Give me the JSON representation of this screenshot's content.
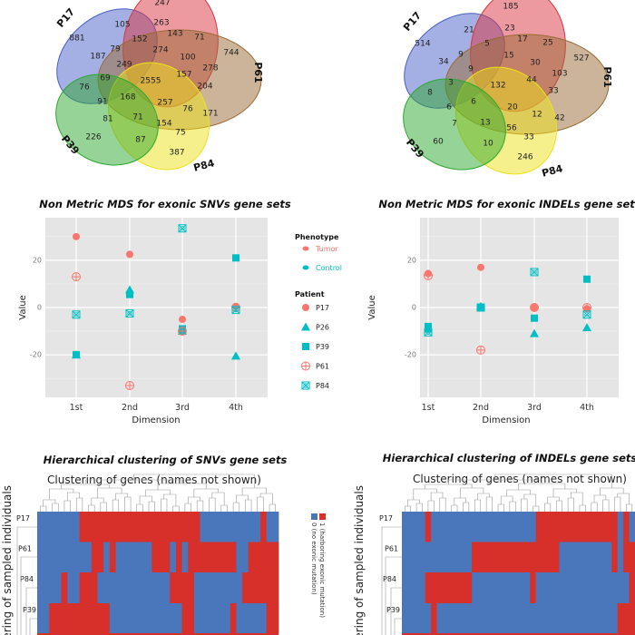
{
  "colors": {
    "P17": "#4a5fc8",
    "top": "#d9343f",
    "P61": "#9a6a35",
    "P84": "#eee21a",
    "P39": "#2ea82e",
    "tumor": "#f8766d",
    "control": "#00bfc4",
    "heat_one": "#d7302a",
    "heat_zero": "#4a76bb",
    "panel_bg": "#e5e5e5"
  },
  "chart_data": [
    {
      "type": "venn",
      "panel": "SNVs",
      "sets": [
        "P17",
        "",
        "P61",
        "P84",
        "P39"
      ],
      "labels": [
        "P17",
        "P61",
        "P39",
        "P84"
      ],
      "region_values": [
        247,
        105,
        881,
        263,
        143,
        71,
        744,
        152,
        79,
        274,
        100,
        187,
        249,
        278,
        69,
        2555,
        157,
        204,
        76,
        91,
        168,
        257,
        76,
        171,
        81,
        71,
        154,
        75,
        226,
        87,
        387
      ]
    },
    {
      "type": "venn",
      "panel": "INDELs",
      "sets": [
        "P17",
        "",
        "P61",
        "P84",
        "P39"
      ],
      "labels": [
        "P17",
        "P61",
        "P39",
        "P84"
      ],
      "region_values": [
        185,
        21,
        514,
        23,
        17,
        25,
        527,
        5,
        9,
        15,
        30,
        34,
        9,
        103,
        3,
        132,
        44,
        33,
        8,
        6,
        6,
        20,
        12,
        42,
        7,
        13,
        56,
        33,
        60,
        10,
        246
      ]
    },
    {
      "type": "scatter",
      "title": "Non Metric MDS for exonic SNVs gene sets",
      "xlabel": "Dimension",
      "ylabel": "Value",
      "categories": [
        "1st",
        "2nd",
        "3rd",
        "4th"
      ],
      "yticks": [
        20,
        0,
        -20
      ],
      "ylim": [
        -38,
        38
      ],
      "grid": true,
      "series": [
        {
          "name": "P17",
          "phenotype": "Tumor",
          "shape": "circle",
          "values": [
            30,
            22.5,
            -5,
            0.5
          ]
        },
        {
          "name": "P26",
          "phenotype": "Control",
          "shape": "triangle",
          "values": [
            -20,
            7.5,
            -10,
            -20.5
          ]
        },
        {
          "name": "P39",
          "phenotype": "Control",
          "shape": "square",
          "values": [
            -20,
            5.5,
            -9,
            21
          ]
        },
        {
          "name": "P61",
          "phenotype": "Tumor",
          "shape": "circle-plus",
          "values": [
            13,
            -33,
            -10,
            0
          ]
        },
        {
          "name": "P84",
          "phenotype": "Control",
          "shape": "square-x",
          "values": [
            -3,
            -2.5,
            33.5,
            -1
          ]
        }
      ],
      "legend": {
        "phenotype_title": "Phenotype",
        "phenotypes": [
          "Tumor",
          "Control"
        ],
        "patient_title": "Patient",
        "placement": "right"
      }
    },
    {
      "type": "scatter",
      "title": "Non Metric MDS for exonic INDELs gene sets",
      "xlabel": "Dimension",
      "ylabel": "Value",
      "categories": [
        "1st",
        "2nd",
        "3rd",
        "4th"
      ],
      "yticks": [
        20,
        0,
        -20
      ],
      "ylim": [
        -38,
        38
      ],
      "grid": true,
      "series": [
        {
          "name": "P17",
          "phenotype": "Tumor",
          "shape": "circle",
          "values": [
            14.4,
            17,
            0,
            -0.5
          ]
        },
        {
          "name": "P26",
          "phenotype": "Control",
          "shape": "triangle",
          "values": [
            -9,
            0.5,
            -11,
            -8.5
          ]
        },
        {
          "name": "P39",
          "phenotype": "Control",
          "shape": "square",
          "values": [
            -8,
            0,
            -4.5,
            12
          ]
        },
        {
          "name": "P61",
          "phenotype": "Tumor",
          "shape": "circle-plus",
          "values": [
            13.5,
            -18,
            0,
            0
          ]
        },
        {
          "name": "P84",
          "phenotype": "Control",
          "shape": "square-x",
          "values": [
            -10.5,
            0,
            15,
            -3
          ]
        }
      ]
    },
    {
      "type": "heatmap",
      "title": "Hierarchical clustering of SNVs gene sets",
      "subtitle": "Clustering of genes (names not shown)",
      "ylabel": "Clustering of sampled individuals",
      "rows": [
        "P17",
        "P61",
        "P84",
        "P39"
      ],
      "cells": [
        "0000000111111111111111111110000000000100",
        "0000000001101000000111010111111110011111",
        "0000100111000000000000111100000000111111",
        "0011111111110000000000001100000010000011"
      ],
      "legend": [
        "1 (harboring exonic mutation)",
        "0 (no exonic mutation)"
      ]
    },
    {
      "type": "heatmap",
      "title": "Hierarchical clustering of INDELs gene sets",
      "subtitle": "Clustering of genes (names not shown)",
      "ylabel": "Clustering of sampled individuals",
      "rows": [
        "P17",
        "P61",
        "P84",
        "P39"
      ],
      "cells": [
        "0000100000000000000000011111111111111010",
        "0000000000001111111111111110000000001011",
        "0000111111110000000000100000000000000001",
        "0000010000000000000000000000000000000111"
      ]
    }
  ]
}
